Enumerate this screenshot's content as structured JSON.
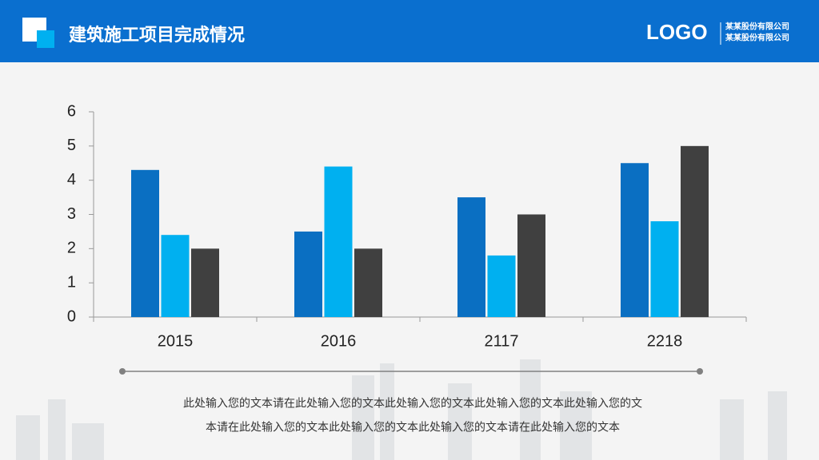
{
  "header": {
    "title": "建筑施工项目完成情况",
    "logo": "LOGO",
    "company_lines": [
      "某某股份有限公司",
      "某某股份有限公司"
    ]
  },
  "chart_data": {
    "type": "bar",
    "categories": [
      "2015",
      "2016",
      "2117",
      "2218"
    ],
    "series": [
      {
        "color": "#0a6fc2",
        "values": [
          4.3,
          2.5,
          3.5,
          4.5
        ]
      },
      {
        "color": "#00b0f0",
        "values": [
          2.4,
          4.4,
          1.8,
          2.8
        ]
      },
      {
        "color": "#404040",
        "values": [
          2.0,
          2.0,
          3.0,
          5.0
        ]
      }
    ],
    "ylim": [
      0,
      6
    ],
    "yticks": [
      0,
      1,
      2,
      3,
      4,
      5,
      6
    ],
    "grid": false
  },
  "body_text": [
    "此处输入您的文本请在此处输入您的文本此处输入您的文本此处输入您的文本此处输入您的文",
    "本请在此处输入您的文本此处输入您的文本此处输入您的文本请在此处输入您的文本"
  ]
}
